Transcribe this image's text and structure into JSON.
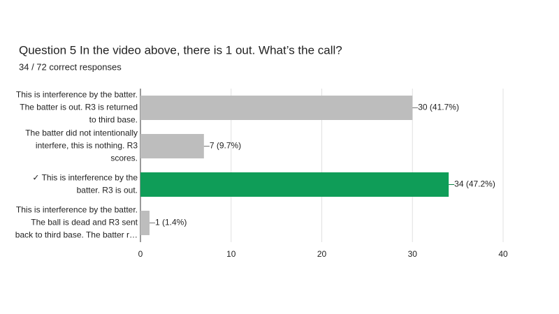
{
  "chart_data": {
    "type": "bar",
    "orientation": "horizontal",
    "title": "Question 5   In the video above, there is 1 out.  What’s the call?",
    "subtitle": "34 / 72 correct responses",
    "categories": [
      [
        "This is interference by the batter.",
        "The batter is out. R3 is returned",
        "to third base."
      ],
      [
        "The batter did not intentionally",
        "interfere, this is nothing. R3",
        "scores."
      ],
      [
        "✓ This is interference by the",
        "batter. R3 is out."
      ],
      [
        "This is interference by the batter.",
        "The ball is dead and R3 sent",
        "back to third base. The batter r…"
      ]
    ],
    "values": [
      30,
      7,
      34,
      1
    ],
    "value_labels": [
      "30 (41.7%)",
      "7 (9.7%)",
      "34 (47.2%)",
      "1 (1.4%)"
    ],
    "colors": [
      "#bdbdbd",
      "#bdbdbd",
      "#0f9d58",
      "#bdbdbd"
    ],
    "value_label_colors": [
      "#757575",
      "#757575",
      "#0b8043",
      "#757575"
    ],
    "xlim": [
      0,
      40
    ],
    "xticks": [
      0,
      10,
      20,
      30,
      40
    ],
    "grid": true
  }
}
